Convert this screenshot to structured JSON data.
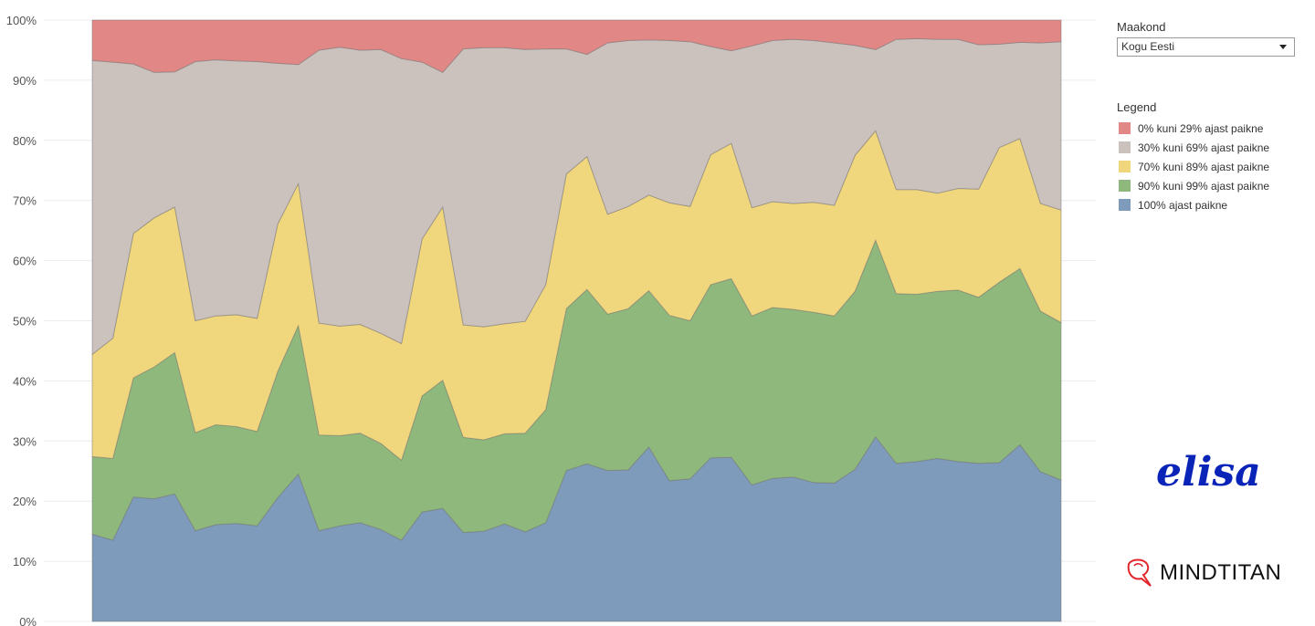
{
  "filter": {
    "label": "Maakond",
    "selected": "Kogu Eesti"
  },
  "legend": {
    "title": "Legend"
  },
  "brand": {
    "logo1": "elisa",
    "logo2": "MINDTITAN"
  },
  "chart_data": {
    "type": "area",
    "stacked": true,
    "ylim": [
      0,
      100
    ],
    "yticks": [
      "0%",
      "10%",
      "20%",
      "30%",
      "40%",
      "50%",
      "60%",
      "70%",
      "80%",
      "90%",
      "100%"
    ],
    "grid": true,
    "legend_position": "right",
    "series": [
      {
        "name": "100% ajast paikne",
        "color": "#7f9bbb",
        "values": [
          14.5,
          13.5,
          20.7,
          20.4,
          21.2,
          15.1,
          16.1,
          16.3,
          15.9,
          20.6,
          24.5,
          15.1,
          15.9,
          16.4,
          15.3,
          13.5,
          18.2,
          18.8,
          14.8,
          15.0,
          16.2,
          14.9,
          16.4,
          25.1,
          26.2,
          25.1,
          25.2,
          29.0,
          23.4,
          23.7,
          27.2,
          27.3,
          22.7,
          23.8,
          24.0,
          23.1,
          23.0,
          25.3,
          30.7,
          26.3,
          26.6,
          27.1,
          26.6,
          26.3,
          26.4,
          29.4,
          24.9,
          23.5
        ]
      },
      {
        "name": "90% kuni 99% ajast paikne",
        "color": "#8fb87d",
        "values": [
          12.9,
          13.6,
          19.8,
          21.9,
          23.5,
          16.3,
          16.6,
          16.1,
          15.7,
          21.0,
          24.7,
          15.9,
          15.0,
          14.9,
          14.3,
          13.3,
          19.3,
          21.3,
          15.8,
          15.2,
          15.0,
          16.4,
          18.8,
          26.9,
          29.0,
          26.0,
          26.8,
          26.0,
          27.5,
          26.3,
          28.8,
          29.7,
          28.1,
          28.4,
          27.9,
          28.3,
          27.8,
          29.6,
          32.7,
          28.2,
          27.8,
          27.8,
          28.5,
          27.6,
          30.0,
          29.3,
          26.7,
          26.2
        ]
      },
      {
        "name": "70% kuni 89% ajast paikne",
        "color": "#f0d67c",
        "values": [
          17.0,
          20.0,
          24.0,
          24.8,
          24.2,
          18.6,
          18.1,
          18.6,
          18.8,
          24.5,
          23.6,
          18.6,
          18.2,
          18.1,
          18.3,
          19.4,
          26.1,
          28.8,
          18.7,
          18.8,
          18.3,
          18.6,
          20.8,
          22.4,
          22.1,
          16.6,
          17.0,
          15.9,
          18.7,
          19.0,
          21.6,
          22.5,
          18.0,
          17.6,
          17.6,
          18.3,
          18.4,
          22.6,
          18.2,
          17.3,
          17.4,
          16.3,
          16.9,
          18.0,
          22.4,
          21.6,
          17.9,
          18.7
        ]
      },
      {
        "name": "30% kuni 69% ajast paikne",
        "color": "#cbc1bd",
        "values": [
          48.9,
          45.9,
          28.2,
          24.2,
          22.5,
          43.1,
          42.6,
          42.2,
          42.7,
          26.7,
          19.8,
          45.4,
          46.4,
          45.6,
          47.2,
          47.4,
          29.4,
          22.4,
          45.9,
          46.4,
          45.9,
          45.2,
          39.2,
          20.8,
          17.0,
          28.5,
          27.6,
          25.8,
          27.0,
          27.4,
          18.0,
          15.4,
          26.9,
          26.8,
          27.3,
          26.9,
          27.0,
          18.3,
          13.5,
          25.0,
          25.1,
          25.6,
          24.8,
          24.0,
          17.2,
          16.0,
          26.7,
          28.0
        ]
      },
      {
        "name": "0% kuni 29% ajast paikne",
        "color": "#e18886",
        "values": [
          6.7,
          7.0,
          7.3,
          8.7,
          8.6,
          6.9,
          6.6,
          6.8,
          6.9,
          7.2,
          7.4,
          5.0,
          4.5,
          5.0,
          4.9,
          6.4,
          7.0,
          8.7,
          4.8,
          4.6,
          4.6,
          4.9,
          4.8,
          4.8,
          5.7,
          3.8,
          3.4,
          3.3,
          3.4,
          3.6,
          4.4,
          5.1,
          4.3,
          3.4,
          3.2,
          3.4,
          3.8,
          4.2,
          4.9,
          3.2,
          3.1,
          3.2,
          3.2,
          4.1,
          4.0,
          3.7,
          3.8,
          3.6
        ]
      }
    ]
  }
}
